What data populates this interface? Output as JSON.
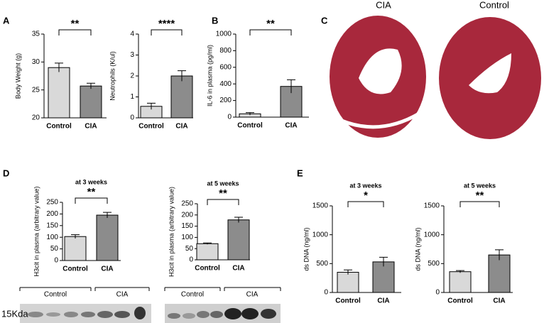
{
  "panel_letters": [
    "A",
    "B",
    "C",
    "D",
    "E"
  ],
  "histology": {
    "labels": [
      "CIA",
      "Control"
    ]
  },
  "blots": [
    {
      "groups": [
        "Control",
        "CIA"
      ],
      "marker": "15Kda"
    },
    {
      "groups": [
        "Control",
        "CIA"
      ]
    }
  ],
  "chart_data": [
    {
      "type": "bar",
      "ylabel": "Body Weight (g)",
      "categories": [
        "Control",
        "CIA"
      ],
      "values": [
        29,
        25.7
      ],
      "errors": [
        0.8,
        0.5
      ],
      "colors": [
        "#d9d9d9",
        "#8c8c8c"
      ],
      "ylim": [
        20,
        35
      ],
      "yticks": [
        20,
        25,
        30,
        35
      ],
      "significance": "**"
    },
    {
      "type": "bar",
      "ylabel": "Neutrophils (K/ul)",
      "categories": [
        "Control",
        "CIA"
      ],
      "values": [
        0.55,
        2.0
      ],
      "errors": [
        0.15,
        0.25
      ],
      "colors": [
        "#d9d9d9",
        "#8c8c8c"
      ],
      "ylim": [
        0,
        4
      ],
      "yticks": [
        0,
        1,
        2,
        3,
        4
      ],
      "significance": "****"
    },
    {
      "type": "bar",
      "ylabel": "IL-6 in plasma (pg/ml)",
      "categories": [
        "Control",
        "CIA"
      ],
      "values": [
        40,
        370
      ],
      "errors": [
        15,
        80
      ],
      "colors": [
        "#d9d9d9",
        "#8c8c8c"
      ],
      "ylim": [
        0,
        1000
      ],
      "yticks": [
        0,
        200,
        400,
        600,
        800,
        1000
      ],
      "significance": "**"
    },
    {
      "type": "bar",
      "subtitle": "at 3 weeks",
      "ylabel": "H3cit in plasma (arbitrary value)",
      "categories": [
        "Control",
        "CIA"
      ],
      "values": [
        103,
        195
      ],
      "errors": [
        8,
        12
      ],
      "colors": [
        "#d9d9d9",
        "#8c8c8c"
      ],
      "ylim": [
        0,
        250
      ],
      "yticks": [
        0,
        50,
        100,
        150,
        200,
        250
      ],
      "significance": "**"
    },
    {
      "type": "bar",
      "subtitle": "at 5 weeks",
      "ylabel": "H3cit in plasma (arbitrary value)",
      "categories": [
        "Control",
        "CIA"
      ],
      "values": [
        72,
        178
      ],
      "errors": [
        3,
        12
      ],
      "colors": [
        "#d9d9d9",
        "#8c8c8c"
      ],
      "ylim": [
        0,
        250
      ],
      "yticks": [
        0,
        50,
        100,
        150,
        200,
        250
      ],
      "significance": "**"
    },
    {
      "type": "bar",
      "subtitle": "at 3 weeks",
      "ylabel": "ds DNA (ng/ml)",
      "categories": [
        "Control",
        "CIA"
      ],
      "values": [
        350,
        530
      ],
      "errors": [
        40,
        80
      ],
      "colors": [
        "#d9d9d9",
        "#8c8c8c"
      ],
      "ylim": [
        0,
        1500
      ],
      "yticks": [
        0,
        500,
        1000,
        1500
      ],
      "significance": "*"
    },
    {
      "type": "bar",
      "subtitle": "at 5 weeks",
      "ylabel": "ds DNA (ng/ml)",
      "categories": [
        "Control",
        "CIA"
      ],
      "values": [
        360,
        650
      ],
      "errors": [
        20,
        90
      ],
      "colors": [
        "#d9d9d9",
        "#8c8c8c"
      ],
      "ylim": [
        0,
        1500
      ],
      "yticks": [
        0,
        500,
        1000,
        1500
      ],
      "significance": "**"
    }
  ]
}
